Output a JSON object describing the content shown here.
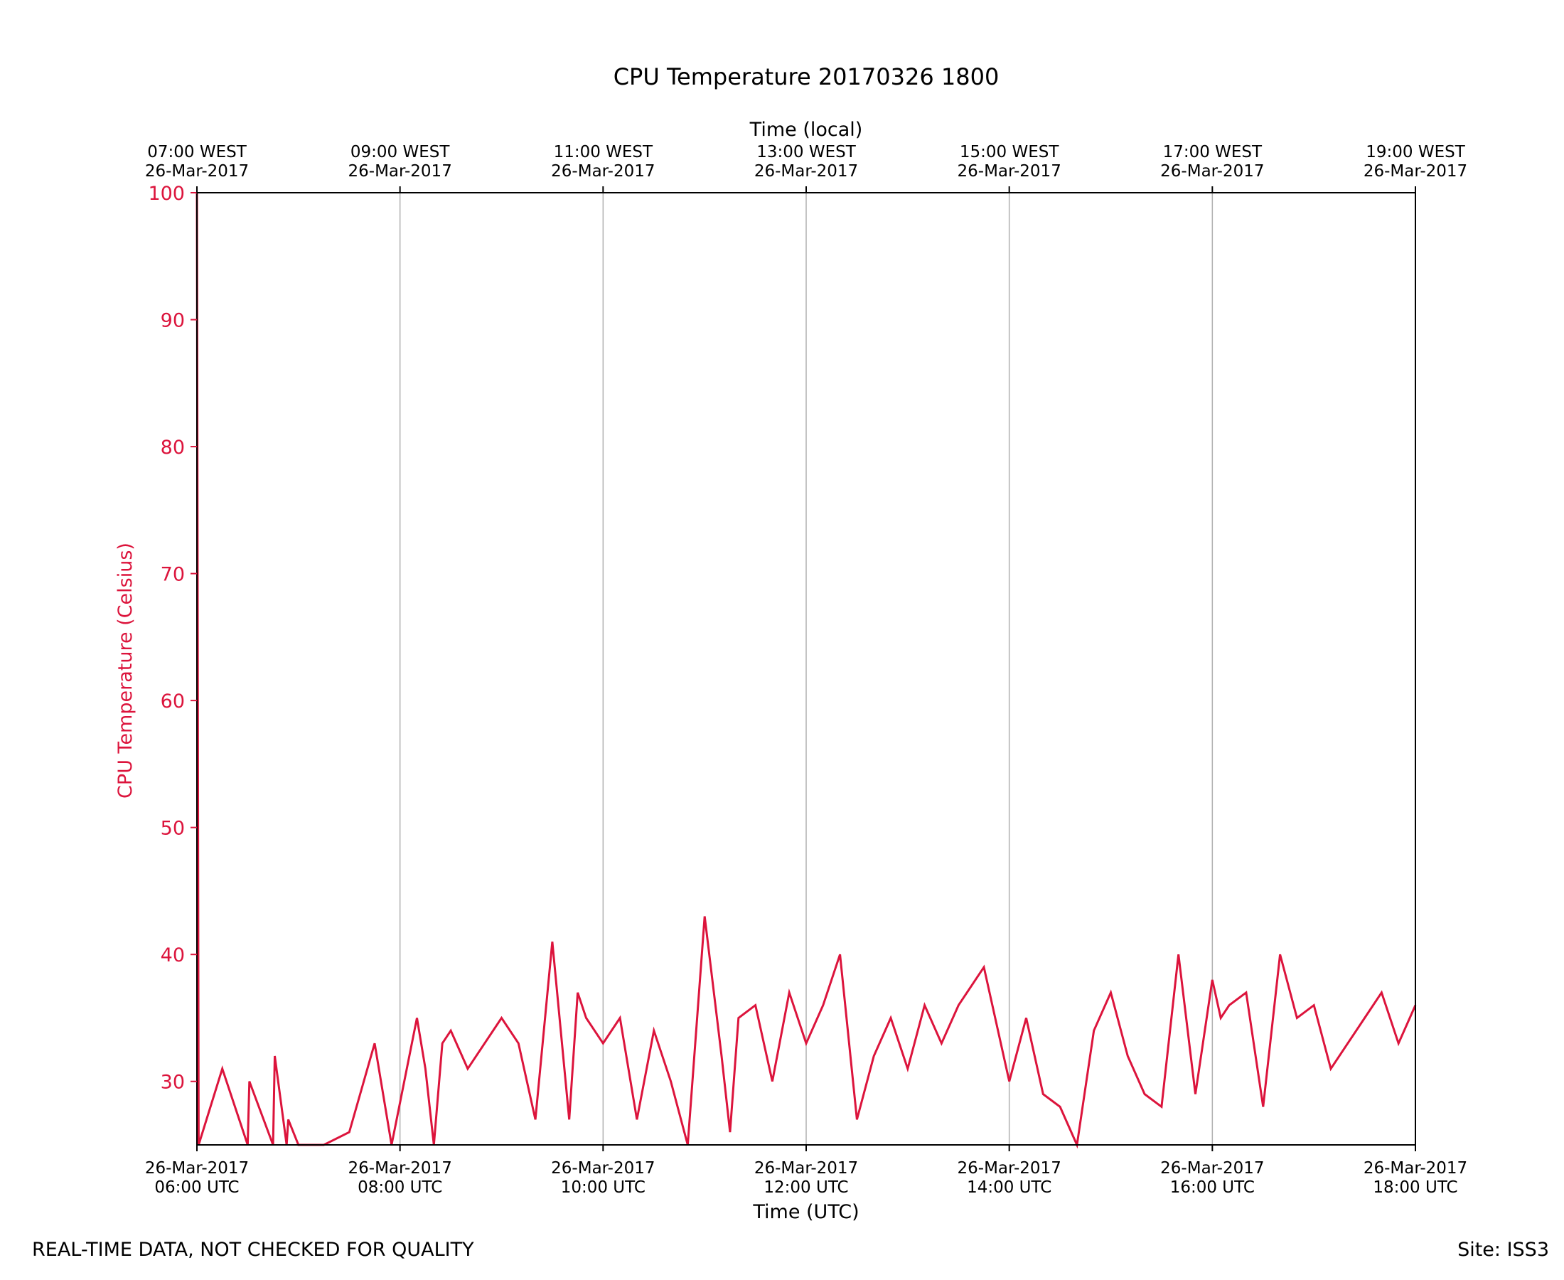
{
  "footer": {
    "left": "REAL-TIME DATA, NOT CHECKED FOR QUALITY",
    "right": "Site: ISS3"
  },
  "chart_data": {
    "type": "line",
    "title": "CPU Temperature 20170326 1800",
    "xlabel": "Time (UTC)",
    "x2label": "Time (local)",
    "ylabel": "CPU Temperature (Celsius)",
    "ylim": [
      25,
      100
    ],
    "xlim": [
      "2017-03-26 06:00",
      "2017-03-26 18:00"
    ],
    "grid": "vertical",
    "colors": {
      "series": "#dc143c",
      "grid": "#b0b0b0",
      "axis": "#000000"
    },
    "yticks": [
      30,
      40,
      50,
      60,
      70,
      80,
      90,
      100
    ],
    "xticks": [
      {
        "line1": "26-Mar-2017",
        "line2": "06:00 UTC"
      },
      {
        "line1": "26-Mar-2017",
        "line2": "08:00 UTC"
      },
      {
        "line1": "26-Mar-2017",
        "line2": "10:00 UTC"
      },
      {
        "line1": "26-Mar-2017",
        "line2": "12:00 UTC"
      },
      {
        "line1": "26-Mar-2017",
        "line2": "14:00 UTC"
      },
      {
        "line1": "26-Mar-2017",
        "line2": "16:00 UTC"
      },
      {
        "line1": "26-Mar-2017",
        "line2": "18:00 UTC"
      }
    ],
    "x2ticks": [
      {
        "line1": "07:00 WEST",
        "line2": "26-Mar-2017"
      },
      {
        "line1": "09:00 WEST",
        "line2": "26-Mar-2017"
      },
      {
        "line1": "11:00 WEST",
        "line2": "26-Mar-2017"
      },
      {
        "line1": "13:00 WEST",
        "line2": "26-Mar-2017"
      },
      {
        "line1": "15:00 WEST",
        "line2": "26-Mar-2017"
      },
      {
        "line1": "17:00 WEST",
        "line2": "26-Mar-2017"
      },
      {
        "line1": "19:00 WEST",
        "line2": "26-Mar-2017"
      }
    ],
    "series": [
      {
        "x": [
          "2017-03-26 06:00",
          "2017-03-26 06:01",
          "2017-03-26 06:15",
          "2017-03-26 06:30",
          "2017-03-26 06:31",
          "2017-03-26 06:45",
          "2017-03-26 06:46",
          "2017-03-26 06:53",
          "2017-03-26 06:54",
          "2017-03-26 07:00",
          "2017-03-26 07:15",
          "2017-03-26 07:30",
          "2017-03-26 07:45",
          "2017-03-26 07:55",
          "2017-03-26 08:10",
          "2017-03-26 08:15",
          "2017-03-26 08:20",
          "2017-03-26 08:25",
          "2017-03-26 08:30",
          "2017-03-26 08:40",
          "2017-03-26 08:50",
          "2017-03-26 09:00",
          "2017-03-26 09:10",
          "2017-03-26 09:20",
          "2017-03-26 09:30",
          "2017-03-26 09:40",
          "2017-03-26 09:45",
          "2017-03-26 09:50",
          "2017-03-26 10:00",
          "2017-03-26 10:10",
          "2017-03-26 10:20",
          "2017-03-26 10:30",
          "2017-03-26 10:40",
          "2017-03-26 10:50",
          "2017-03-26 11:00",
          "2017-03-26 11:10",
          "2017-03-26 11:15",
          "2017-03-26 11:20",
          "2017-03-26 11:30",
          "2017-03-26 11:40",
          "2017-03-26 11:50",
          "2017-03-26 12:00",
          "2017-03-26 12:10",
          "2017-03-26 12:20",
          "2017-03-26 12:30",
          "2017-03-26 12:40",
          "2017-03-26 12:50",
          "2017-03-26 13:00",
          "2017-03-26 13:10",
          "2017-03-26 13:20",
          "2017-03-26 13:30",
          "2017-03-26 13:45",
          "2017-03-26 14:00",
          "2017-03-26 14:10",
          "2017-03-26 14:20",
          "2017-03-26 14:30",
          "2017-03-26 14:40",
          "2017-03-26 14:50",
          "2017-03-26 15:00",
          "2017-03-26 15:10",
          "2017-03-26 15:20",
          "2017-03-26 15:30",
          "2017-03-26 15:40",
          "2017-03-26 15:50",
          "2017-03-26 16:00",
          "2017-03-26 16:05",
          "2017-03-26 16:10",
          "2017-03-26 16:20",
          "2017-03-26 16:30",
          "2017-03-26 16:40",
          "2017-03-26 16:50",
          "2017-03-26 17:00",
          "2017-03-26 17:10",
          "2017-03-26 17:20",
          "2017-03-26 17:30",
          "2017-03-26 17:40",
          "2017-03-26 17:50",
          "2017-03-26 18:00"
        ],
        "y": [
          100,
          25,
          31,
          25,
          30,
          25,
          32,
          25,
          27,
          25,
          25,
          26,
          33,
          25,
          35,
          31,
          25,
          33,
          34,
          31,
          33,
          35,
          33,
          27,
          41,
          27,
          37,
          35,
          33,
          35,
          27,
          34,
          30,
          25,
          43,
          32,
          26,
          35,
          36,
          30,
          37,
          33,
          36,
          40,
          27,
          32,
          35,
          31,
          36,
          33,
          36,
          39,
          30,
          35,
          29,
          28,
          25,
          34,
          37,
          32,
          29,
          28,
          40,
          29,
          38,
          35,
          36,
          37,
          28,
          40,
          35,
          36,
          31,
          33,
          35,
          37,
          33,
          36
        ]
      }
    ]
  }
}
